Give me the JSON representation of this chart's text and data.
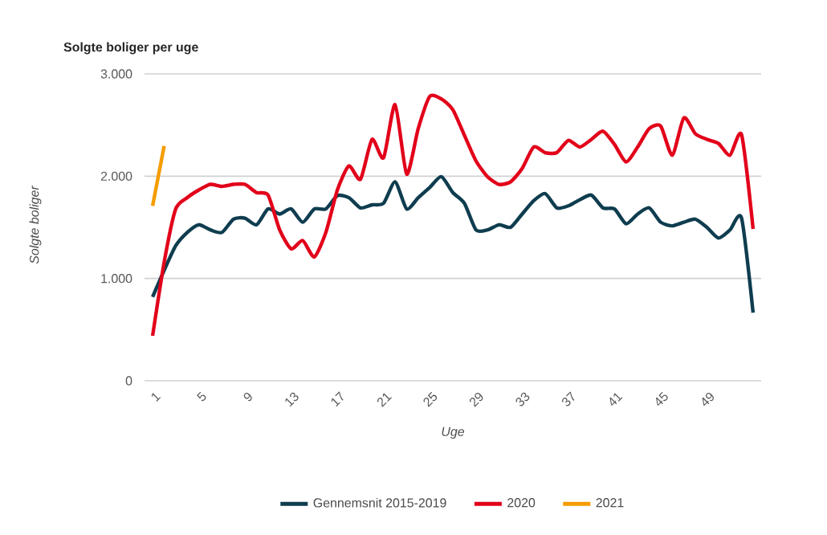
{
  "chart_data": {
    "type": "line",
    "title": "Solgte boliger per uge",
    "xlabel": "Uge",
    "ylabel": "Solgte boliger",
    "x": [
      1,
      2,
      3,
      4,
      5,
      6,
      7,
      8,
      9,
      10,
      11,
      12,
      13,
      14,
      15,
      16,
      17,
      18,
      19,
      20,
      21,
      22,
      23,
      24,
      25,
      26,
      27,
      28,
      29,
      30,
      31,
      32,
      33,
      34,
      35,
      36,
      37,
      38,
      39,
      40,
      41,
      42,
      43,
      44,
      45,
      46,
      47,
      48,
      49,
      50,
      51,
      52,
      53
    ],
    "series": [
      {
        "name": "Gennemsnit 2015-2019",
        "color": "#0f3d4f",
        "values": [
          820,
          1080,
          1320,
          1450,
          1525,
          1475,
          1450,
          1580,
          1590,
          1525,
          1680,
          1630,
          1680,
          1550,
          1680,
          1680,
          1810,
          1790,
          1690,
          1720,
          1735,
          1945,
          1680,
          1790,
          1890,
          1995,
          1840,
          1735,
          1475,
          1475,
          1525,
          1500,
          1630,
          1760,
          1830,
          1690,
          1710,
          1770,
          1815,
          1690,
          1680,
          1535,
          1630,
          1690,
          1550,
          1515,
          1550,
          1580,
          1500,
          1395,
          1475,
          1590,
          665
        ]
      },
      {
        "name": "2020",
        "color": "#e2001a",
        "values": [
          440,
          1160,
          1680,
          1790,
          1865,
          1920,
          1900,
          1920,
          1920,
          1840,
          1815,
          1475,
          1290,
          1370,
          1210,
          1450,
          1865,
          2100,
          1970,
          2360,
          2180,
          2700,
          2020,
          2465,
          2780,
          2755,
          2650,
          2400,
          2150,
          1995,
          1920,
          1945,
          2075,
          2285,
          2230,
          2230,
          2350,
          2285,
          2360,
          2440,
          2310,
          2140,
          2285,
          2465,
          2490,
          2205,
          2570,
          2415,
          2360,
          2320,
          2205,
          2405,
          1485
        ]
      },
      {
        "name": "2021",
        "color": "#f59c00",
        "x": [
          1,
          2
        ],
        "values": [
          1710,
          2295
        ]
      }
    ],
    "xlim": [
      0.3,
      53.7
    ],
    "ylim": [
      0,
      3000
    ],
    "xticks": [
      1,
      5,
      9,
      13,
      17,
      21,
      25,
      29,
      33,
      37,
      41,
      45,
      49
    ],
    "yticks": [
      {
        "value": 0,
        "label": "0"
      },
      {
        "value": 1000,
        "label": "1.000"
      },
      {
        "value": 2000,
        "label": "2.000"
      },
      {
        "value": 3000,
        "label": "3.000"
      }
    ],
    "grid": "y",
    "legend": "bottom",
    "marker": "none",
    "line_style": "solid"
  }
}
